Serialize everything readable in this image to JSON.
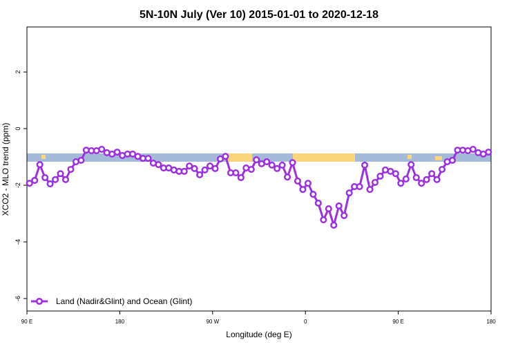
{
  "chart_data": {
    "type": "line",
    "title": "5N-10N July (Ver 10)   2015-01-01 to 2020-12-18",
    "x_label": "Longitude (deg E)",
    "y_label": "XCO2 - MLO trend (ppm)",
    "xlim": [
      90,
      540
    ],
    "ylim": [
      -6.44,
      3.59
    ],
    "xticks": [
      {
        "value": 90,
        "label": "90 E"
      },
      {
        "value": 180,
        "label": "180"
      },
      {
        "value": 270,
        "label": "90 W"
      },
      {
        "value": 360,
        "label": "0"
      },
      {
        "value": 450,
        "label": "90 E"
      },
      {
        "value": 540,
        "label": "180"
      }
    ],
    "yticks": [
      2,
      0,
      -2,
      -4,
      -6
    ],
    "legend_position": "bottom-left",
    "x": [
      92.5,
      97.5,
      102.5,
      107.5,
      112.5,
      117.5,
      122.5,
      127.5,
      132.5,
      137.5,
      142.5,
      147.5,
      152.5,
      157.5,
      162.5,
      167.5,
      172.5,
      177.5,
      182.5,
      187.5,
      192.5,
      197.5,
      202.5,
      207.5,
      212.5,
      217.5,
      222.5,
      227.5,
      232.5,
      237.5,
      242.5,
      247.5,
      252.5,
      257.5,
      262.5,
      267.5,
      272.5,
      277.5,
      282.5,
      287.5,
      292.5,
      297.5,
      302.5,
      307.5,
      312.5,
      317.5,
      322.5,
      327.5,
      332.5,
      337.5,
      342.5,
      347.5,
      352.5,
      357.5,
      362.5,
      367.5,
      372.5,
      377.5,
      382.5,
      387.5,
      392.5,
      397.5,
      402.5,
      407.5,
      412.5,
      417.5,
      422.5,
      427.5,
      432.5,
      437.5,
      442.5,
      447.5,
      452.5,
      457.5,
      462.5,
      467.5,
      472.5,
      477.5,
      482.5,
      487.5,
      492.5,
      497.5,
      502.5,
      507.5,
      512.5,
      517.5,
      522.5,
      527.5,
      532.5,
      537.5
    ],
    "series": [
      {
        "name": "Land (Nadir&Glint) and Ocean (Glint)",
        "color": "#9b30e0",
        "values": [
          -1.93,
          -1.83,
          -1.27,
          -1.73,
          -1.95,
          -1.8,
          -1.59,
          -1.8,
          -1.44,
          -1.17,
          -1.12,
          -0.76,
          -0.78,
          -0.78,
          -0.73,
          -0.85,
          -0.9,
          -0.83,
          -0.95,
          -0.9,
          -0.9,
          -0.98,
          -1.05,
          -1.05,
          -1.22,
          -1.27,
          -1.39,
          -1.39,
          -1.46,
          -1.51,
          -1.51,
          -1.32,
          -1.41,
          -1.63,
          -1.46,
          -1.32,
          -1.41,
          -1.07,
          -0.98,
          -1.56,
          -1.56,
          -1.73,
          -1.39,
          -1.44,
          -1.1,
          -1.24,
          -1.17,
          -1.29,
          -1.41,
          -1.29,
          -1.71,
          -1.2,
          -1.85,
          -2.15,
          -1.93,
          -2.32,
          -2.63,
          -3.22,
          -2.83,
          -3.41,
          -2.73,
          -3.07,
          -2.27,
          -2.05,
          -2.05,
          -1.29,
          -2.15,
          -1.9,
          -1.68,
          -1.46,
          -1.51,
          -1.59,
          -1.93,
          -1.78,
          -1.27,
          -1.73,
          -1.93,
          -1.8,
          -1.59,
          -1.8,
          -1.44,
          -1.17,
          -1.12,
          -0.76,
          -0.76,
          -0.78,
          -0.73,
          -0.85,
          -0.9,
          -0.83
        ]
      }
    ]
  }
}
